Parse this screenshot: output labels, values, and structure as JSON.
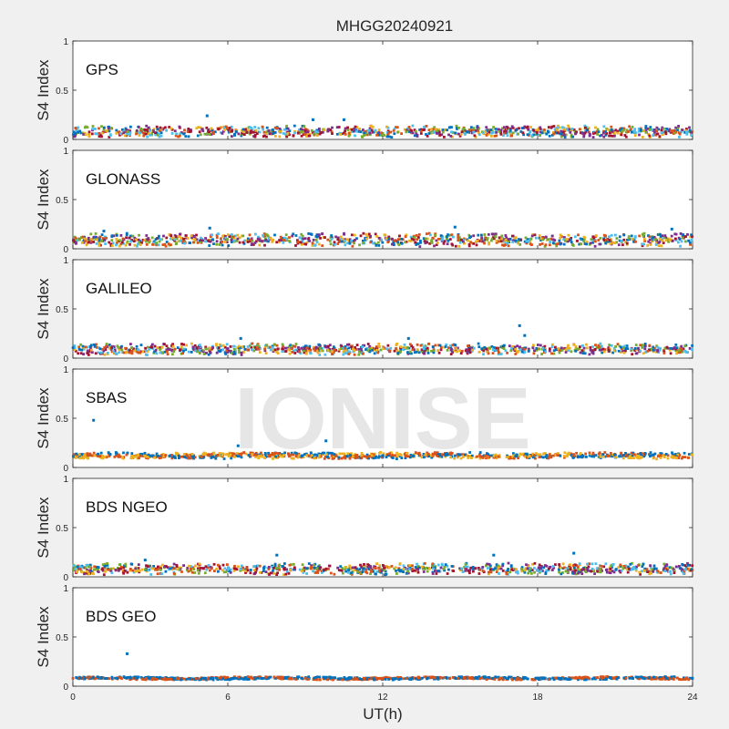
{
  "figure": {
    "title": "MHGG20240921",
    "xlabel": "UT(h)",
    "watermark": "IONISE"
  },
  "chart_data": [
    {
      "type": "scatter",
      "label": "GPS",
      "ylabel": "S4 Index",
      "ylim": [
        0,
        1
      ],
      "xlim": [
        0,
        24
      ],
      "yticks": [
        "0",
        "0.5",
        "1"
      ],
      "baseline": 0.08,
      "spread": 0.07,
      "series_colors": [
        "#0072BD",
        "#D95319",
        "#EDB120",
        "#7E2F8E",
        "#77AC30",
        "#4DBEEE",
        "#A2142F"
      ],
      "outliers": [
        [
          5.2,
          0.24
        ],
        [
          9.3,
          0.2
        ],
        [
          10.5,
          0.2
        ]
      ]
    },
    {
      "type": "scatter",
      "label": "GLONASS",
      "ylabel": "S4 Index",
      "ylim": [
        0,
        1
      ],
      "xlim": [
        0,
        24
      ],
      "yticks": [
        "0",
        "0.5",
        "1"
      ],
      "baseline": 0.09,
      "spread": 0.08,
      "series_colors": [
        "#0072BD",
        "#D95319",
        "#EDB120",
        "#7E2F8E",
        "#77AC30",
        "#4DBEEE",
        "#A2142F"
      ],
      "outliers": [
        [
          1.2,
          0.18
        ],
        [
          5.3,
          0.21
        ],
        [
          14.8,
          0.22
        ],
        [
          23.2,
          0.2
        ]
      ]
    },
    {
      "type": "scatter",
      "label": "GALILEO",
      "ylabel": "S4 Index",
      "ylim": [
        0,
        1
      ],
      "xlim": [
        0,
        24
      ],
      "yticks": [
        "0",
        "0.5",
        "1"
      ],
      "baseline": 0.09,
      "spread": 0.07,
      "series_colors": [
        "#0072BD",
        "#D95319",
        "#EDB120",
        "#7E2F8E",
        "#77AC30",
        "#4DBEEE",
        "#A2142F"
      ],
      "outliers": [
        [
          17.3,
          0.33
        ],
        [
          13.0,
          0.2
        ],
        [
          17.5,
          0.23
        ],
        [
          6.5,
          0.2
        ]
      ]
    },
    {
      "type": "scatter",
      "label": "SBAS",
      "ylabel": "S4 Index",
      "ylim": [
        0,
        1
      ],
      "xlim": [
        0,
        24
      ],
      "yticks": [
        "0",
        "0.5",
        "1"
      ],
      "baseline": 0.12,
      "spread": 0.04,
      "series_colors": [
        "#0072BD",
        "#D95319",
        "#EDB120"
      ],
      "outliers": [
        [
          0.8,
          0.48
        ],
        [
          9.8,
          0.27
        ],
        [
          6.4,
          0.22
        ]
      ]
    },
    {
      "type": "scatter",
      "label": "BDS NGEO",
      "ylabel": "S4 Index",
      "ylim": [
        0,
        1
      ],
      "xlim": [
        0,
        24
      ],
      "yticks": [
        "0",
        "0.5",
        "1"
      ],
      "baseline": 0.08,
      "spread": 0.07,
      "series_colors": [
        "#0072BD",
        "#D95319",
        "#EDB120",
        "#7E2F8E",
        "#77AC30",
        "#4DBEEE",
        "#A2142F"
      ],
      "outliers": [
        [
          2.8,
          0.17
        ],
        [
          7.9,
          0.22
        ],
        [
          16.3,
          0.22
        ],
        [
          19.4,
          0.24
        ]
      ]
    },
    {
      "type": "scatter",
      "label": "BDS GEO",
      "ylabel": "S4 Index",
      "ylim": [
        0,
        1
      ],
      "xlim": [
        0,
        24
      ],
      "yticks": [
        "0",
        "0.5",
        "1"
      ],
      "xticks": [
        "0",
        "6",
        "12",
        "18",
        "24"
      ],
      "baseline": 0.08,
      "spread": 0.02,
      "series_colors": [
        "#0072BD",
        "#D95319"
      ],
      "outliers": [
        [
          2.1,
          0.33
        ]
      ]
    }
  ]
}
